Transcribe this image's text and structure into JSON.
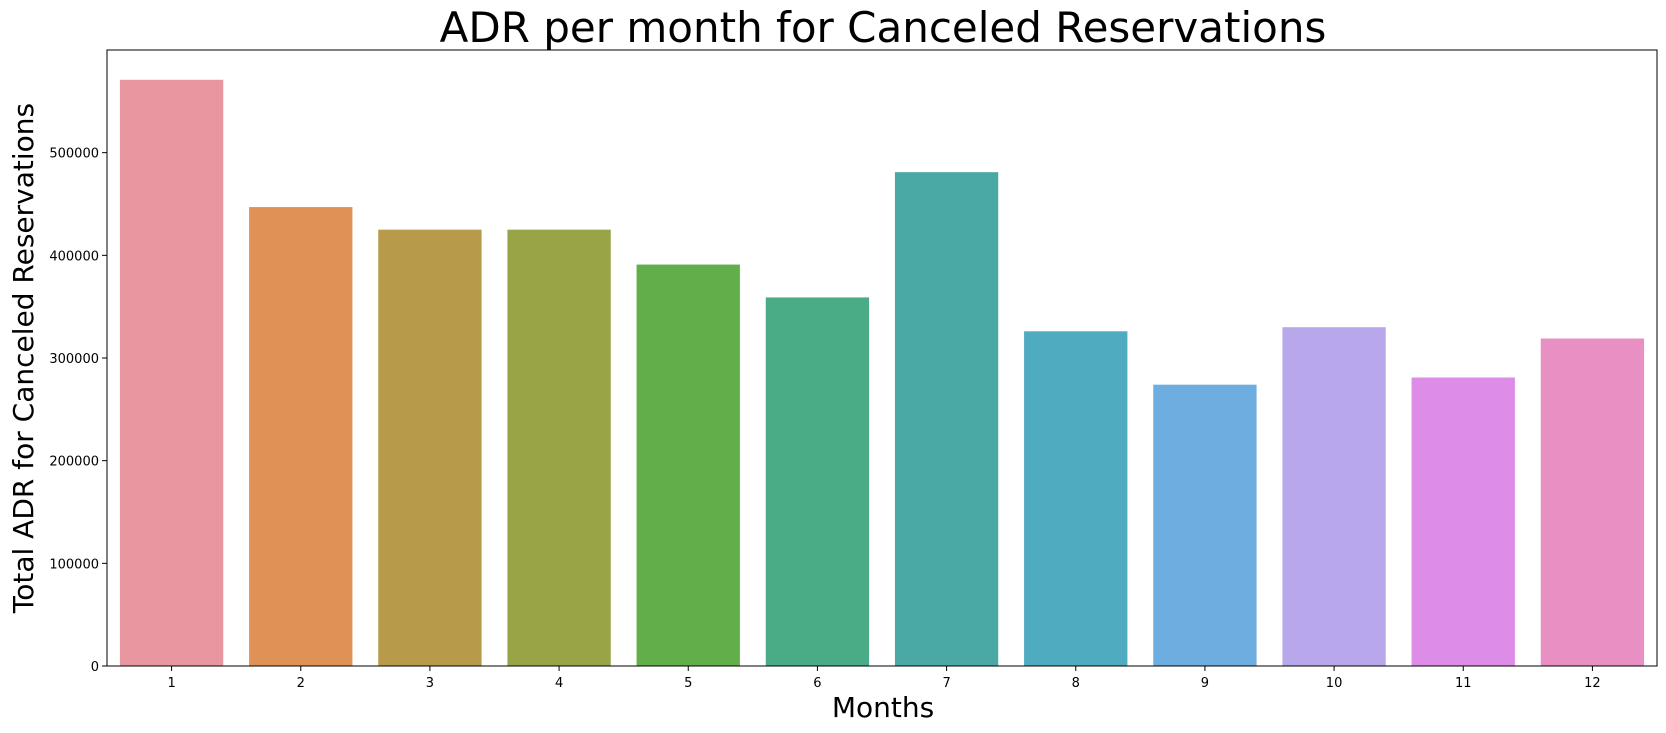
{
  "chart_data": {
    "type": "bar",
    "title": "ADR per month for Canceled Reservations",
    "xlabel": "Months",
    "ylabel": "Total ADR for Canceled Reservations",
    "categories": [
      "1",
      "2",
      "3",
      "4",
      "5",
      "6",
      "7",
      "8",
      "9",
      "10",
      "11",
      "12"
    ],
    "values": [
      571000,
      447000,
      425000,
      425000,
      391000,
      359000,
      481000,
      326000,
      274000,
      330000,
      281000,
      319000
    ],
    "colors": [
      "#e8969f",
      "#e09155",
      "#b89b4a",
      "#99a446",
      "#62ae4a",
      "#4aab87",
      "#4aa9a5",
      "#4fabbf",
      "#6dade0",
      "#b8a8eb",
      "#dd8ce8",
      "#e890c4"
    ],
    "yticks": [
      0,
      100000,
      200000,
      300000,
      400000,
      500000
    ],
    "ytick_labels": [
      "0",
      "100000",
      "200000",
      "300000",
      "400000",
      "500000"
    ],
    "ylim": [
      0,
      600000
    ],
    "grid": false,
    "legend": false
  }
}
